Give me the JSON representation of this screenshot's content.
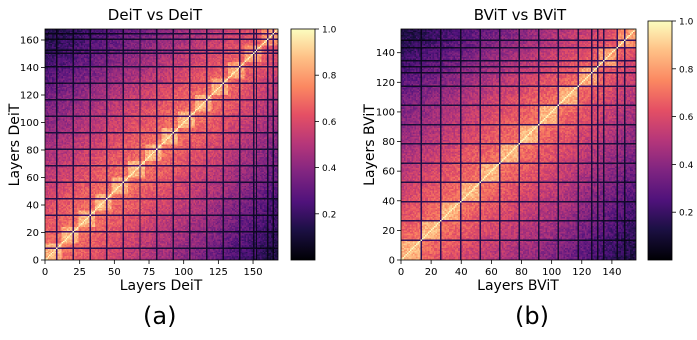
{
  "captions": [
    "(a)",
    "(b)"
  ],
  "chart_data": [
    {
      "type": "heatmap",
      "title": "DeiT vs DeiT",
      "xlabel": "Layers DeiT",
      "ylabel": "Layers DeiT",
      "size": 168,
      "xlim": [
        0,
        168
      ],
      "ylim": [
        0,
        168
      ],
      "xticks": [
        0,
        25,
        50,
        75,
        100,
        125,
        150
      ],
      "yticks": [
        0,
        20,
        40,
        60,
        80,
        100,
        120,
        140,
        160
      ],
      "block_size": 12,
      "dark_bands": [
        8,
        20,
        32,
        44,
        56,
        68,
        80,
        92,
        104,
        116,
        128,
        140,
        150,
        152,
        160,
        164
      ],
      "value_range": [
        0,
        1
      ],
      "diagonal_value": 1.0,
      "colormap": "magma",
      "colorbar": {
        "ticks": [
          0.2,
          0.4,
          0.6,
          0.8,
          1.0
        ],
        "tick_labels": [
          "0.2",
          "0.4",
          "0.6",
          "0.8",
          "1.0"
        ],
        "range": [
          0.0,
          1.0
        ]
      },
      "grid": false
    },
    {
      "type": "heatmap",
      "title": "BViT vs BViT",
      "xlabel": "Layers BViT",
      "ylabel": "Layers BViT",
      "size": 156,
      "xlim": [
        0,
        156
      ],
      "ylim": [
        0,
        156
      ],
      "xticks": [
        0,
        20,
        40,
        60,
        80,
        100,
        120,
        140
      ],
      "yticks": [
        0,
        20,
        40,
        60,
        80,
        100,
        120,
        140
      ],
      "block_size": 13,
      "dark_bands": [
        13,
        26,
        39,
        52,
        65,
        78,
        91,
        104,
        117,
        126,
        130,
        134,
        143,
        148
      ],
      "value_range": [
        0,
        1
      ],
      "diagonal_value": 1.0,
      "colormap": "magma",
      "colorbar": {
        "ticks": [
          0.2,
          0.4,
          0.6,
          0.8,
          1.0
        ],
        "tick_labels": [
          "0.2",
          "0.4",
          "0.6",
          "0.8",
          "1.0"
        ],
        "range": [
          0.0,
          1.0
        ]
      },
      "grid": false
    }
  ]
}
